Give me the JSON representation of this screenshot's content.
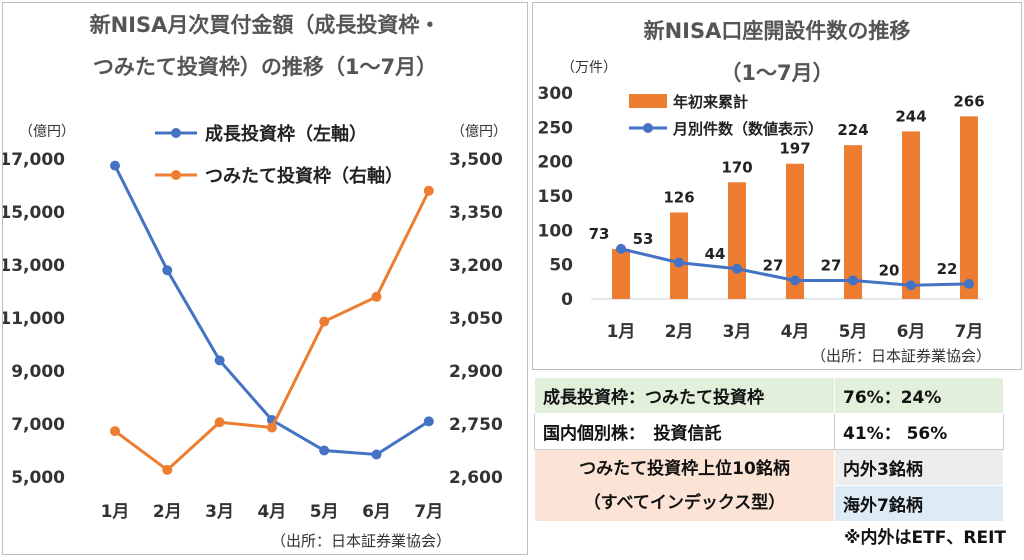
{
  "chart_data": [
    {
      "type": "line",
      "title": "新NISA月次買付金額（成長投資枠・つみたて投資枠）の推移（1〜7月）",
      "title_line1": "新NISA月次買付金額（成長投資枠・",
      "title_line2": "つみたて投資枠）の推移（1〜7月）",
      "y_unit_left": "（億円）",
      "y_unit_right": "（億円）",
      "categories": [
        "1月",
        "2月",
        "3月",
        "4月",
        "5月",
        "6月",
        "7月"
      ],
      "left_axis": {
        "ylim": [
          5000,
          17000
        ],
        "ticks": [
          "5,000",
          "7,000",
          "9,000",
          "11,000",
          "13,000",
          "15,000",
          "17,000"
        ],
        "tick_values": [
          5000,
          7000,
          9000,
          11000,
          13000,
          15000,
          17000
        ]
      },
      "right_axis": {
        "ylim": [
          2600,
          3500
        ],
        "ticks": [
          "2,600",
          "2,750",
          "2,900",
          "3,050",
          "3,200",
          "3,350",
          "3,500"
        ],
        "tick_values": [
          2600,
          2750,
          2900,
          3050,
          3200,
          3350,
          3500
        ]
      },
      "series": [
        {
          "name": "成長投資枠（左軸）",
          "axis": "left",
          "color": "#4472c4",
          "values": [
            16750,
            12800,
            9400,
            7150,
            6000,
            5850,
            7100
          ]
        },
        {
          "name": "つみたて投資枠（右軸）",
          "axis": "right",
          "color": "#ed7d31",
          "values": [
            2730,
            2620,
            2755,
            2740,
            3040,
            3110,
            3410
          ]
        }
      ],
      "legend": "top-right",
      "grid": false,
      "source": "（出所：日本証券業協会）"
    },
    {
      "type": "bar",
      "title": "新NISA口座開設件数の推移（1〜7月）",
      "title_line1": "新NISA口座開設件数の推移",
      "title_line2": "（1〜7月）",
      "y_unit": "（万件）",
      "categories": [
        "1月",
        "2月",
        "3月",
        "4月",
        "5月",
        "6月",
        "7月"
      ],
      "ylim": [
        0,
        300
      ],
      "ticks": [
        "0",
        "50",
        "100",
        "150",
        "200",
        "250",
        "300"
      ],
      "tick_values": [
        0,
        50,
        100,
        150,
        200,
        250,
        300
      ],
      "series": [
        {
          "name": "年初来累計",
          "kind": "bar",
          "color": "#ed7d31",
          "values": [
            73,
            126,
            170,
            197,
            224,
            244,
            266
          ]
        },
        {
          "name": "月別件数（数値表示）",
          "kind": "line",
          "color": "#4472c4",
          "values": [
            73,
            53,
            44,
            27,
            27,
            20,
            22
          ]
        }
      ],
      "bar_labels": [
        "73",
        "126",
        "170",
        "197",
        "224",
        "244",
        "266"
      ],
      "line_labels": [
        "53",
        "44",
        "27",
        "27",
        "20",
        "22"
      ],
      "legend": "top-left",
      "grid": false,
      "source": "（出所：日本証券業協会）"
    }
  ],
  "summary": {
    "rows": [
      {
        "label": "成長投資枠：つみたて投資枠",
        "value": "76%：24%",
        "bg": "#e2efda"
      },
      {
        "label": "国内個別株：　投資信託",
        "value": "41%：  56%",
        "bg": "#ffffff"
      }
    ],
    "top10": {
      "label_line1": "つみたて投資枠上位10銘柄",
      "label_line2": "（すべてインデックス型）",
      "label_bg": "#fbe4d5",
      "items": [
        {
          "text": "内外3銘柄",
          "bg": "#ededed"
        },
        {
          "text": "海外7銘柄",
          "bg": "#ddebf7"
        }
      ]
    },
    "note": "※内外はETF、REIT"
  }
}
